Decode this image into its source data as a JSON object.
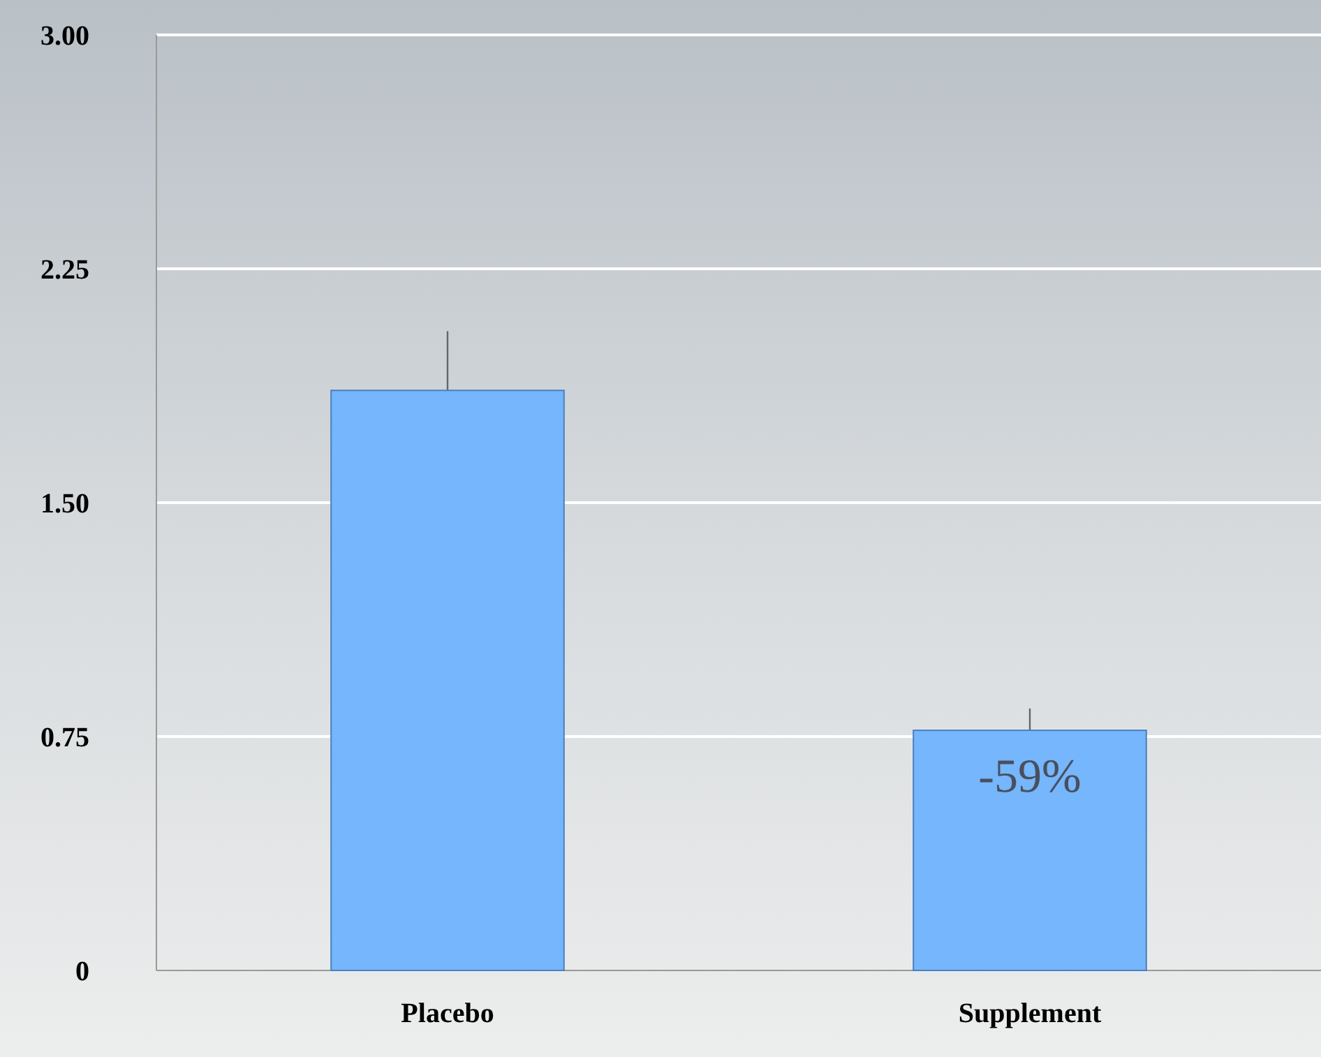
{
  "chart_data": {
    "type": "bar",
    "categories": [
      "Placebo",
      "Supplement"
    ],
    "values": [
      1.86,
      0.77
    ],
    "errors": [
      0.19,
      0.07
    ],
    "color": "#75b6fc",
    "ylim": [
      0,
      3
    ],
    "yticks": [
      0,
      {
        "value": 0.75,
        "label": "0.75"
      },
      {
        "value": 1.5,
        "label": "1.50"
      },
      {
        "value": 2.25,
        "label": "2.25"
      },
      {
        "value": 3,
        "label": "3.00"
      }
    ],
    "grid": "y",
    "annotations": [
      {
        "text": "-59%",
        "x": "Supplement",
        "y": 0.77
      }
    ]
  }
}
